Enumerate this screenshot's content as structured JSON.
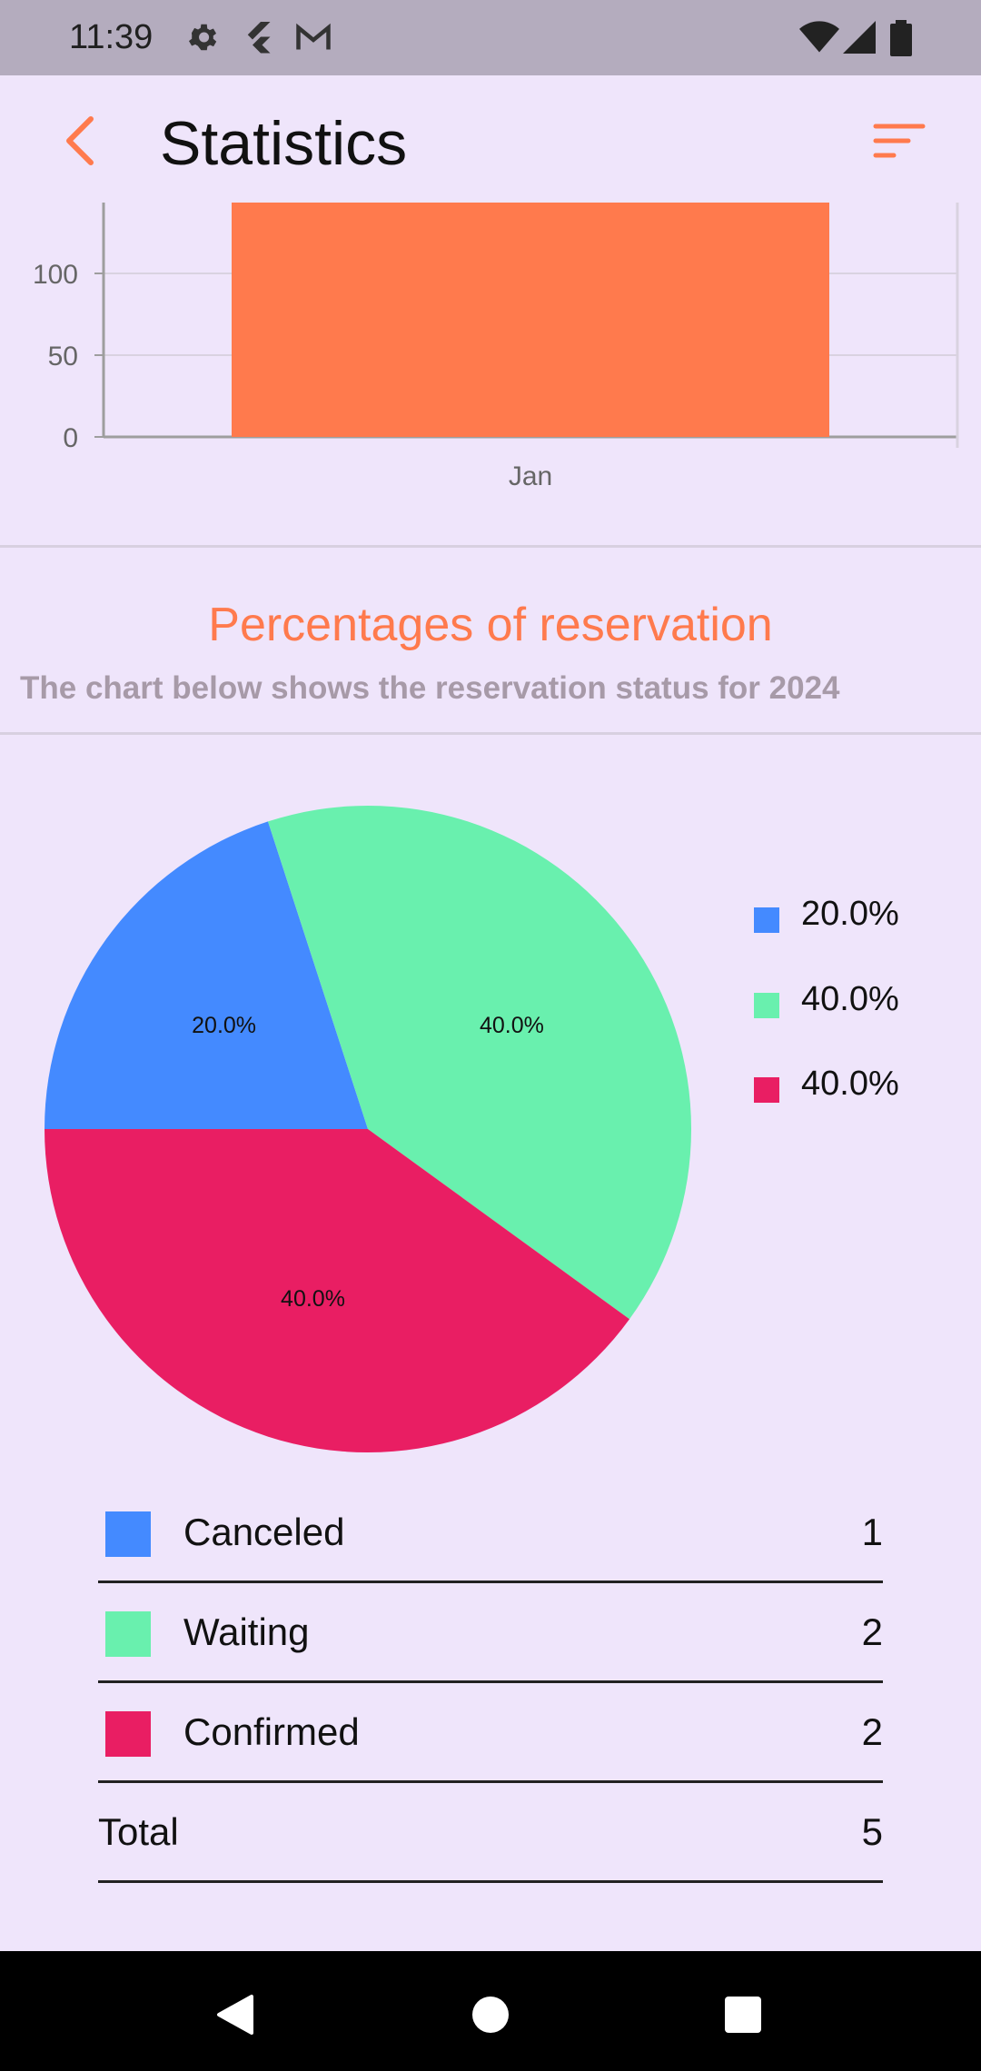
{
  "status_bar": {
    "time": "11:39",
    "icons": [
      "settings-icon",
      "flutter-icon",
      "gmail-icon",
      "wifi-icon",
      "signal-icon",
      "battery-icon"
    ]
  },
  "app_bar": {
    "title": "Statistics",
    "back_icon": "chevron-left-icon",
    "sort_icon": "sort-icon",
    "accent": "#FF7A4D"
  },
  "chart_data": [
    {
      "type": "bar",
      "categories": [
        "Jan"
      ],
      "values": [
        145
      ],
      "y_ticks": [
        "0",
        "50",
        "100"
      ],
      "ylim": [
        0,
        145
      ],
      "grid": true,
      "colors": [
        "#FF7A4D"
      ]
    },
    {
      "type": "pie",
      "categories": [
        "Canceled",
        "Waiting",
        "Confirmed"
      ],
      "values": [
        20.0,
        40.0,
        40.0
      ],
      "slice_labels": [
        "20.0%",
        "40.0%",
        "40.0%"
      ],
      "legend": [
        "20.0%",
        "40.0%",
        "40.0%"
      ],
      "legend_position": "right",
      "colors": [
        "#448AFF",
        "#69F0AE",
        "#E91E63"
      ]
    }
  ],
  "reservation": {
    "title": "Percentages of reservation",
    "subtitle": "The chart below shows the reservation status for 2024",
    "rows": [
      {
        "label": "Canceled",
        "count": "1",
        "color": "#448AFF"
      },
      {
        "label": "Waiting",
        "count": "2",
        "color": "#69F0AE"
      },
      {
        "label": "Confirmed",
        "count": "2",
        "color": "#E91E63"
      }
    ],
    "total_label": "Total",
    "total_count": "5"
  },
  "nav_bar": {
    "icons": [
      "back-triangle-icon",
      "home-circle-icon",
      "recents-square-icon"
    ]
  }
}
